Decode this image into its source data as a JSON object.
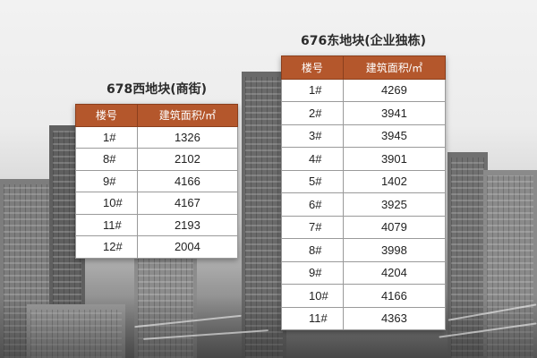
{
  "west": {
    "title": "678西地块(商街)",
    "headers": [
      "楼号",
      "建筑面积/㎡"
    ],
    "rows": [
      [
        "1#",
        "1326"
      ],
      [
        "8#",
        "2102"
      ],
      [
        "9#",
        "4166"
      ],
      [
        "10#",
        "4167"
      ],
      [
        "11#",
        "2193"
      ],
      [
        "12#",
        "2004"
      ]
    ]
  },
  "east": {
    "title": "676东地块(企业独栋)",
    "headers": [
      "楼号",
      "建筑面积/㎡"
    ],
    "rows": [
      [
        "1#",
        "4269"
      ],
      [
        "2#",
        "3941"
      ],
      [
        "3#",
        "3945"
      ],
      [
        "4#",
        "3901"
      ],
      [
        "5#",
        "1402"
      ],
      [
        "6#",
        "3925"
      ],
      [
        "7#",
        "4079"
      ],
      [
        "8#",
        "3998"
      ],
      [
        "9#",
        "4204"
      ],
      [
        "10#",
        "4166"
      ],
      [
        "11#",
        "4363"
      ]
    ]
  },
  "colors": {
    "header_bg": "#b4572c",
    "header_text": "#ffffff"
  }
}
